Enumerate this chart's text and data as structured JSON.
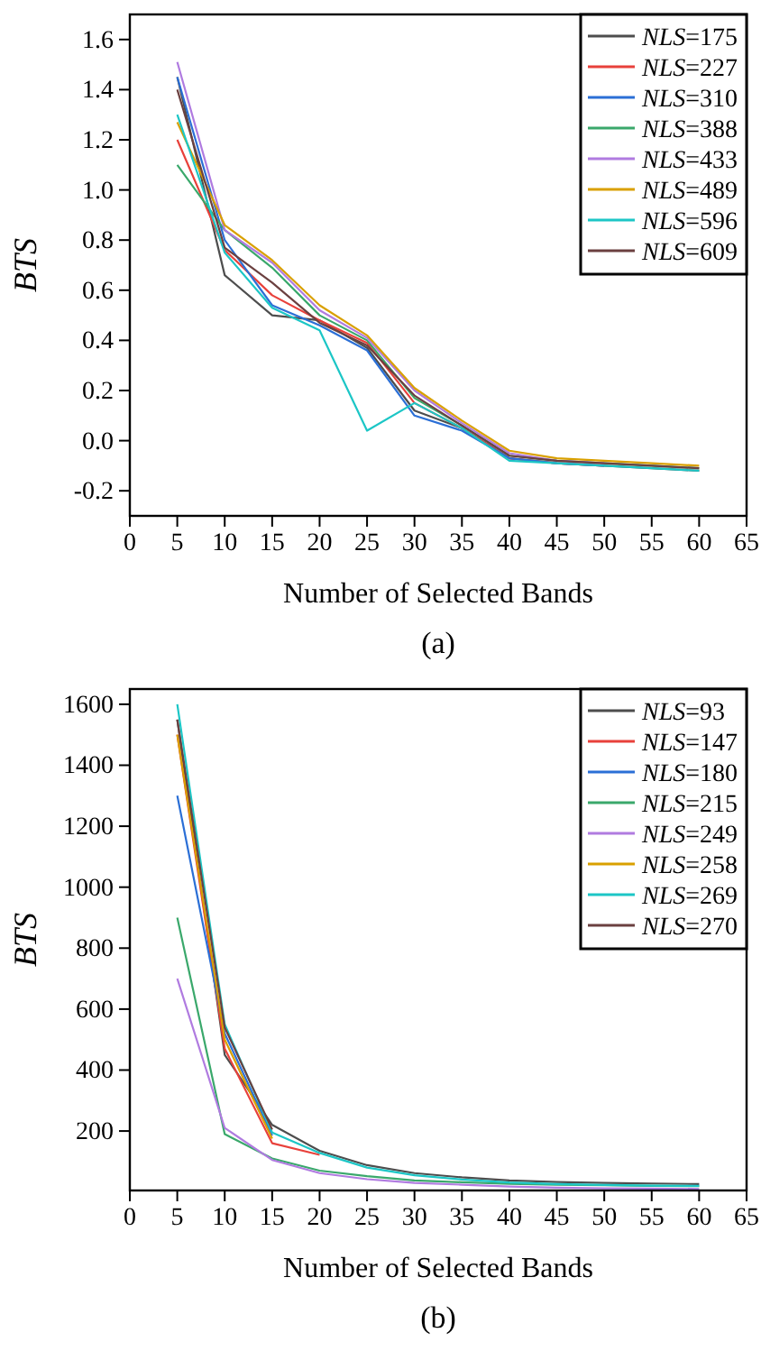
{
  "chart_data": [
    {
      "type": "line",
      "xlabel": "Number of Selected Bands",
      "ylabel": "BTS",
      "annotations": [
        "(a)"
      ],
      "legend": "top right",
      "grid": false,
      "x": [
        5,
        10,
        15,
        20,
        25,
        30,
        35,
        40,
        45,
        50,
        55,
        60
      ],
      "xlim": [
        0,
        65
      ],
      "xticks": [
        0,
        5,
        10,
        15,
        20,
        25,
        30,
        35,
        40,
        45,
        50,
        55,
        60,
        65
      ],
      "ylim": [
        -0.3,
        1.7
      ],
      "yticks": [
        -0.2,
        {
          "value": 0,
          "label": "0.0"
        },
        0.2,
        0.4,
        0.6,
        0.8,
        {
          "value": 1,
          "label": "1.0"
        },
        1.2,
        1.4,
        1.6
      ],
      "series": [
        {
          "name": "NLS=175",
          "color": "#4d4d4d",
          "values": [
            1.45,
            0.66,
            0.5,
            0.48,
            0.37,
            0.12,
            0.05,
            -0.07,
            -0.09,
            -0.1,
            -0.11,
            -0.12
          ]
        },
        {
          "name": "NLS=227",
          "color": "#e8413b",
          "values": [
            1.2,
            0.76,
            0.58,
            0.48,
            0.39,
            0.15,
            0.05,
            -0.07,
            -0.09,
            -0.1,
            null,
            null
          ]
        },
        {
          "name": "NLS=310",
          "color": "#2b6fd6",
          "values": [
            1.45,
            0.8,
            0.54,
            0.46,
            0.36,
            0.1,
            0.04,
            -0.07,
            -0.09,
            -0.1,
            null,
            null
          ]
        },
        {
          "name": "NLS=388",
          "color": "#3aa86b",
          "values": [
            1.1,
            0.84,
            0.69,
            0.5,
            0.4,
            0.17,
            0.06,
            -0.06,
            -0.08,
            -0.09,
            -0.1,
            -0.11
          ]
        },
        {
          "name": "NLS=433",
          "color": "#b07be0",
          "values": [
            1.51,
            0.84,
            0.71,
            0.52,
            0.41,
            0.2,
            0.07,
            -0.05,
            -0.08,
            -0.09,
            null,
            null
          ]
        },
        {
          "name": "NLS=489",
          "color": "#d9a000",
          "values": [
            1.27,
            0.86,
            0.72,
            0.54,
            0.42,
            0.21,
            0.08,
            -0.04,
            -0.07,
            -0.08,
            -0.09,
            -0.1
          ]
        },
        {
          "name": "NLS=596",
          "color": "#1cc6c6",
          "values": [
            1.3,
            0.75,
            0.53,
            0.44,
            0.04,
            0.15,
            0.05,
            -0.08,
            -0.09,
            -0.1,
            -0.11,
            -0.12
          ]
        },
        {
          "name": "NLS=609",
          "color": "#6b4040",
          "values": [
            1.4,
            0.77,
            0.63,
            0.47,
            0.38,
            0.18,
            0.06,
            -0.06,
            -0.08,
            -0.09,
            -0.1,
            -0.11
          ]
        }
      ]
    },
    {
      "type": "line",
      "xlabel": "Number of Selected Bands",
      "ylabel": "BTS",
      "annotations": [
        "(b)"
      ],
      "legend": "top right",
      "grid": false,
      "x": [
        5,
        10,
        15,
        20,
        25,
        30,
        35,
        40,
        45,
        50,
        55,
        60
      ],
      "xlim": [
        0,
        65
      ],
      "xticks": [
        0,
        5,
        10,
        15,
        20,
        25,
        30,
        35,
        40,
        45,
        50,
        55,
        60,
        65
      ],
      "ylim": [
        5,
        1650
      ],
      "yticks": [
        200,
        400,
        600,
        800,
        1000,
        1200,
        1400,
        1600
      ],
      "series": [
        {
          "name": "NLS=93",
          "color": "#4d4d4d",
          "values": [
            1550,
            450,
            220,
            135,
            88,
            62,
            48,
            38,
            33,
            30,
            28,
            26
          ]
        },
        {
          "name": "NLS=147",
          "color": "#e8413b",
          "values": [
            1500,
            470,
            160,
            122,
            null,
            null,
            null,
            null,
            null,
            null,
            null,
            null
          ]
        },
        {
          "name": "NLS=180",
          "color": "#2b6fd6",
          "values": [
            1300,
            520,
            185,
            null,
            null,
            null,
            null,
            null,
            null,
            null,
            null,
            null
          ]
        },
        {
          "name": "NLS=215",
          "color": "#3aa86b",
          "values": [
            900,
            190,
            110,
            70,
            52,
            38,
            32,
            27,
            24,
            22,
            20,
            19
          ]
        },
        {
          "name": "NLS=249",
          "color": "#b07be0",
          "values": [
            700,
            210,
            105,
            62,
            42,
            30,
            24,
            18,
            14,
            12,
            11,
            10
          ]
        },
        {
          "name": "NLS=258",
          "color": "#d9a000",
          "values": [
            1500,
            500,
            175,
            null,
            null,
            null,
            null,
            null,
            null,
            null,
            null,
            null
          ]
        },
        {
          "name": "NLS=269",
          "color": "#1cc6c6",
          "values": [
            1600,
            550,
            195,
            128,
            80,
            55,
            41,
            31,
            26,
            23,
            21,
            20
          ]
        },
        {
          "name": "NLS=270",
          "color": "#6b4040",
          "values": [
            1550,
            540,
            205,
            null,
            null,
            null,
            null,
            null,
            null,
            null,
            null,
            null
          ]
        }
      ]
    }
  ]
}
